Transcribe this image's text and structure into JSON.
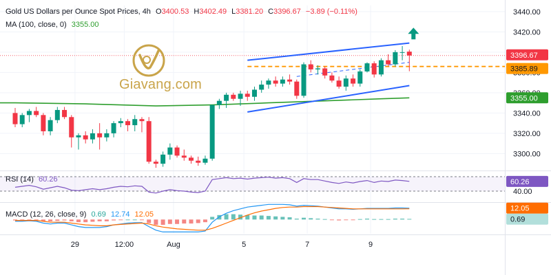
{
  "header": {
    "symbol": "Gold US Dollars per Ounce Spot Prices, 4h",
    "open_label": "O",
    "open": "3400.53",
    "high_label": "H",
    "high": "3402.49",
    "low_label": "L",
    "low": "3381.20",
    "close_label": "C",
    "close": "3396.67",
    "change": "−3.89 (−0.11%)",
    "ma_label": "MA (100, close, 0)",
    "ma_value": "3355.00"
  },
  "rsi_pane": {
    "label": "RSI (14)",
    "value": "60.26",
    "level_40": "40.00"
  },
  "macd_pane": {
    "label": "MACD (12, 26, close, 9)",
    "hist": "0.69",
    "macd": "12.74",
    "signal": "12.05"
  },
  "watermark": {
    "brand": "Giavang.com"
  },
  "price_tags": {
    "last": "3396.67",
    "dashed": "3385.89",
    "ma": "3355.00"
  },
  "colors": {
    "up": "#089981",
    "down": "#f23645",
    "ma": "#2e9e2e",
    "channel": "#2962ff",
    "dashed_level": "#ff9800",
    "rsi": "#7e57c2",
    "macd": "#2196f3",
    "signal": "#ff6d00",
    "hist_pos": "#26a69a",
    "hist_neg": "#ef5350",
    "arrow": "#089981",
    "brand": "#c9a44a"
  },
  "chart_data": {
    "type": "candlestick",
    "timeframe": "4h",
    "y_axis": {
      "ticks": [
        3300,
        3320,
        3340,
        3360,
        3380,
        3400,
        3420,
        3440
      ],
      "range": [
        3284,
        3446
      ]
    },
    "x_axis": {
      "tick_labels": [
        "29",
        "12:00",
        "Aug",
        "5",
        "7",
        "9"
      ],
      "tick_index": [
        8.5,
        15.5,
        22.5,
        32.5,
        41.5,
        50.5
      ]
    },
    "candles": [
      {
        "o": 3340,
        "h": 3345,
        "l": 3326,
        "c": 3329
      },
      {
        "o": 3329,
        "h": 3340,
        "l": 3326,
        "c": 3338
      },
      {
        "o": 3338,
        "h": 3344,
        "l": 3331,
        "c": 3342
      },
      {
        "o": 3342,
        "h": 3346,
        "l": 3336,
        "c": 3338
      },
      {
        "o": 3338,
        "h": 3340,
        "l": 3318,
        "c": 3322
      },
      {
        "o": 3322,
        "h": 3336,
        "l": 3318,
        "c": 3333
      },
      {
        "o": 3333,
        "h": 3346,
        "l": 3330,
        "c": 3343
      },
      {
        "o": 3343,
        "h": 3346,
        "l": 3334,
        "c": 3336
      },
      {
        "o": 3336,
        "h": 3338,
        "l": 3306,
        "c": 3316
      },
      {
        "o": 3316,
        "h": 3320,
        "l": 3304,
        "c": 3318
      },
      {
        "o": 3318,
        "h": 3322,
        "l": 3310,
        "c": 3314
      },
      {
        "o": 3314,
        "h": 3324,
        "l": 3310,
        "c": 3320
      },
      {
        "o": 3320,
        "h": 3330,
        "l": 3304,
        "c": 3316
      },
      {
        "o": 3316,
        "h": 3324,
        "l": 3312,
        "c": 3320
      },
      {
        "o": 3320,
        "h": 3332,
        "l": 3316,
        "c": 3330
      },
      {
        "o": 3330,
        "h": 3335,
        "l": 3326,
        "c": 3332
      },
      {
        "o": 3332,
        "h": 3334,
        "l": 3322,
        "c": 3328
      },
      {
        "o": 3328,
        "h": 3338,
        "l": 3322,
        "c": 3334
      },
      {
        "o": 3334,
        "h": 3336,
        "l": 3321,
        "c": 3332
      },
      {
        "o": 3332,
        "h": 3336,
        "l": 3290,
        "c": 3292
      },
      {
        "o": 3292,
        "h": 3294,
        "l": 3286,
        "c": 3290
      },
      {
        "o": 3290,
        "h": 3302,
        "l": 3287,
        "c": 3299
      },
      {
        "o": 3299,
        "h": 3310,
        "l": 3294,
        "c": 3306
      },
      {
        "o": 3306,
        "h": 3308,
        "l": 3296,
        "c": 3298
      },
      {
        "o": 3298,
        "h": 3304,
        "l": 3293,
        "c": 3296
      },
      {
        "o": 3296,
        "h": 3298,
        "l": 3290,
        "c": 3293
      },
      {
        "o": 3293,
        "h": 3297,
        "l": 3288,
        "c": 3291
      },
      {
        "o": 3291,
        "h": 3298,
        "l": 3289,
        "c": 3295
      },
      {
        "o": 3295,
        "h": 3348,
        "l": 3293,
        "c": 3348
      },
      {
        "o": 3348,
        "h": 3354,
        "l": 3344,
        "c": 3352
      },
      {
        "o": 3352,
        "h": 3360,
        "l": 3345,
        "c": 3358
      },
      {
        "o": 3358,
        "h": 3360,
        "l": 3352,
        "c": 3354
      },
      {
        "o": 3354,
        "h": 3362,
        "l": 3347,
        "c": 3359
      },
      {
        "o": 3359,
        "h": 3362,
        "l": 3352,
        "c": 3356
      },
      {
        "o": 3356,
        "h": 3366,
        "l": 3352,
        "c": 3363
      },
      {
        "o": 3363,
        "h": 3372,
        "l": 3360,
        "c": 3368
      },
      {
        "o": 3368,
        "h": 3374,
        "l": 3364,
        "c": 3372
      },
      {
        "o": 3372,
        "h": 3376,
        "l": 3366,
        "c": 3369
      },
      {
        "o": 3369,
        "h": 3376,
        "l": 3366,
        "c": 3373
      },
      {
        "o": 3373,
        "h": 3378,
        "l": 3368,
        "c": 3371
      },
      {
        "o": 3371,
        "h": 3373,
        "l": 3354,
        "c": 3357
      },
      {
        "o": 3357,
        "h": 3390,
        "l": 3355,
        "c": 3388
      },
      {
        "o": 3388,
        "h": 3392,
        "l": 3380,
        "c": 3383
      },
      {
        "o": 3383,
        "h": 3387,
        "l": 3378,
        "c": 3384
      },
      {
        "o": 3384,
        "h": 3386,
        "l": 3374,
        "c": 3377
      },
      {
        "o": 3377,
        "h": 3380,
        "l": 3370,
        "c": 3372
      },
      {
        "o": 3372,
        "h": 3376,
        "l": 3364,
        "c": 3366
      },
      {
        "o": 3366,
        "h": 3377,
        "l": 3362,
        "c": 3374
      },
      {
        "o": 3374,
        "h": 3378,
        "l": 3366,
        "c": 3369
      },
      {
        "o": 3369,
        "h": 3383,
        "l": 3366,
        "c": 3381
      },
      {
        "o": 3381,
        "h": 3390,
        "l": 3380,
        "c": 3389
      },
      {
        "o": 3389,
        "h": 3391,
        "l": 3375,
        "c": 3378
      },
      {
        "o": 3378,
        "h": 3394,
        "l": 3376,
        "c": 3392
      },
      {
        "o": 3392,
        "h": 3398,
        "l": 3386,
        "c": 3388
      },
      {
        "o": 3388,
        "h": 3402,
        "l": 3386,
        "c": 3400
      },
      {
        "o": 3400,
        "h": 3406,
        "l": 3392,
        "c": 3400
      },
      {
        "o": 3400.53,
        "h": 3402.49,
        "l": 3381.2,
        "c": 3396.67
      }
    ],
    "ma_100": {
      "start_index": 0,
      "values_at": [
        [
          0,
          3350
        ],
        [
          10,
          3349
        ],
        [
          20,
          3347
        ],
        [
          28,
          3348
        ],
        [
          36,
          3350
        ],
        [
          44,
          3352
        ],
        [
          52,
          3354
        ],
        [
          56,
          3355
        ]
      ]
    },
    "channel": {
      "upper": [
        [
          33,
          3392
        ],
        [
          56,
          3409
        ]
      ],
      "lower": [
        [
          33,
          3341
        ],
        [
          56,
          3367
        ]
      ]
    },
    "dashed_level": {
      "value": 3385.89,
      "from_index": 33
    },
    "rsi": {
      "levels": [
        40,
        70
      ],
      "values": [
        48,
        50,
        52,
        49,
        44,
        47,
        50,
        47,
        42,
        41,
        43,
        45,
        43,
        45,
        48,
        50,
        49,
        51,
        50,
        38,
        36,
        40,
        43,
        41,
        40,
        38,
        37,
        40,
        64,
        66,
        68,
        66,
        67,
        65,
        67,
        68,
        69,
        67,
        68,
        66,
        58,
        66,
        64,
        64,
        61,
        58,
        56,
        59,
        57,
        60,
        62,
        58,
        61,
        60,
        63,
        62,
        60.26
      ]
    },
    "macd": {
      "hist": [
        -1,
        -1,
        -0.5,
        -1,
        -2,
        -2,
        -1.5,
        -1,
        -2,
        -3,
        -3,
        -2.5,
        -2,
        -2,
        -1,
        -0.5,
        0,
        0,
        -0.5,
        -4,
        -6,
        -6,
        -5,
        -5,
        -4.5,
        -4.5,
        -4,
        -3,
        3,
        5,
        6,
        6,
        5.5,
        5,
        4.5,
        4.5,
        4,
        3.5,
        3,
        2.5,
        1,
        2,
        1.5,
        1,
        0.5,
        -0.5,
        -1,
        -0.5,
        -0.5,
        0.5,
        1,
        0.5,
        0.5,
        0.5,
        1,
        1,
        0.69
      ],
      "macd": [
        -2,
        -2,
        -1.5,
        -2,
        -4,
        -5,
        -4,
        -4,
        -6,
        -8,
        -9,
        -9,
        -9,
        -8,
        -6,
        -5,
        -4,
        -3.5,
        -3.5,
        -8,
        -12,
        -14,
        -14,
        -14,
        -14,
        -14,
        -14,
        -13,
        -3,
        3,
        7,
        10,
        12,
        14,
        15,
        16,
        17,
        17,
        17,
        16.5,
        15,
        16,
        15.5,
        15,
        14,
        13,
        12,
        12,
        11.5,
        12,
        12.5,
        12.5,
        12.5,
        12.5,
        13,
        13,
        12.74
      ],
      "signal": [
        -1,
        -1,
        -1,
        -1,
        -2,
        -3,
        -3,
        -3,
        -4,
        -5,
        -6,
        -6.5,
        -7,
        -7,
        -6,
        -5.5,
        -5,
        -4.5,
        -4,
        -5,
        -7,
        -8.5,
        -9.5,
        -10.5,
        -11,
        -11.5,
        -12,
        -12,
        -10,
        -7,
        -4,
        -1,
        2,
        5,
        7.5,
        9.5,
        11,
        12.5,
        13.5,
        14,
        14,
        14.5,
        14.5,
        14.5,
        14,
        13.5,
        13,
        12.5,
        12,
        12,
        12,
        12,
        12,
        12,
        12,
        12,
        12.05
      ]
    }
  }
}
